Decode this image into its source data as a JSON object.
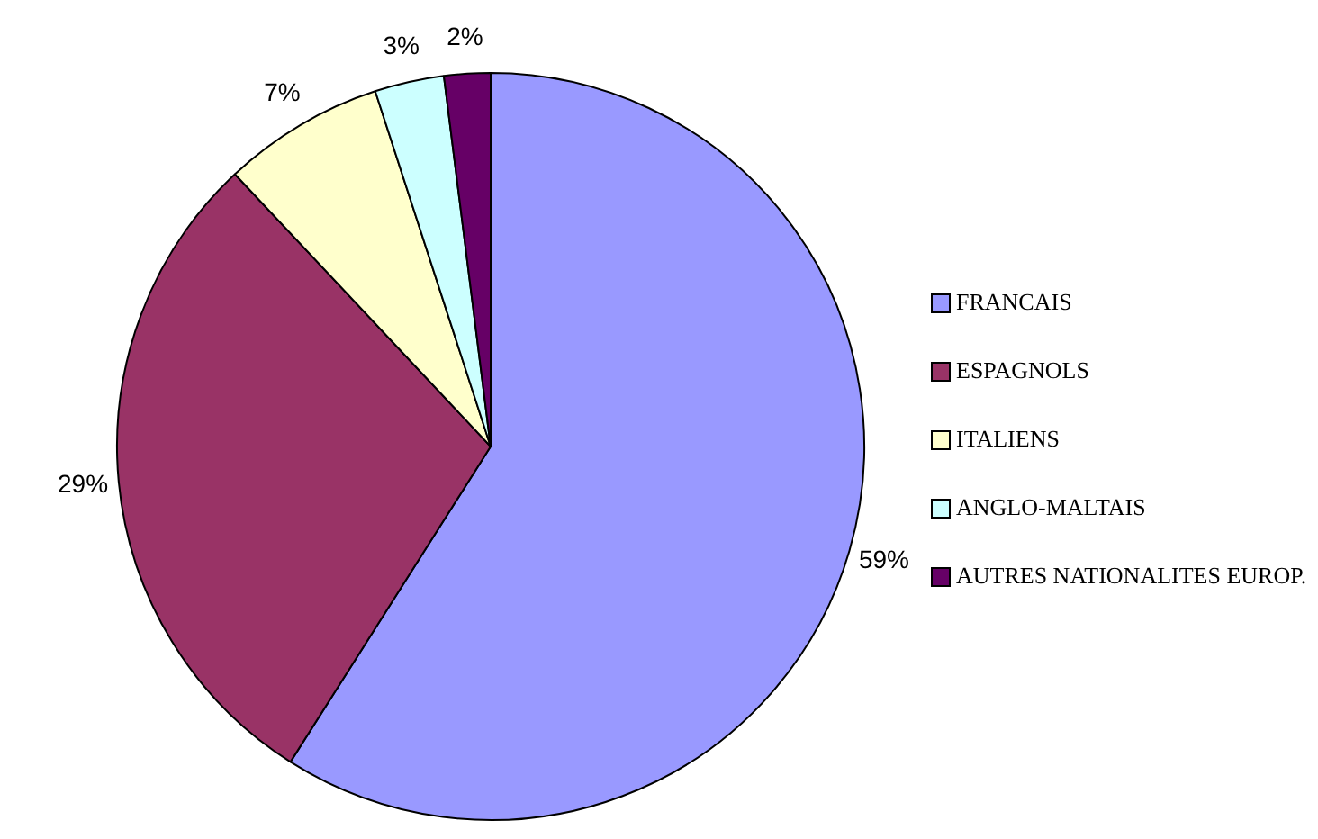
{
  "chart_data": {
    "type": "pie",
    "categories": [
      "FRANCAIS",
      "ESPAGNOLS",
      "ITALIENS",
      "ANGLO-MALTAIS",
      "AUTRES NATIONALITES EUROP."
    ],
    "values": [
      59,
      29,
      7,
      3,
      2
    ],
    "colors": [
      "#9999ff",
      "#993366",
      "#ffffcc",
      "#ccffff",
      "#660066"
    ],
    "value_labels": [
      "59%",
      "29%",
      "7%",
      "3%",
      "2%"
    ],
    "legend": "right"
  }
}
